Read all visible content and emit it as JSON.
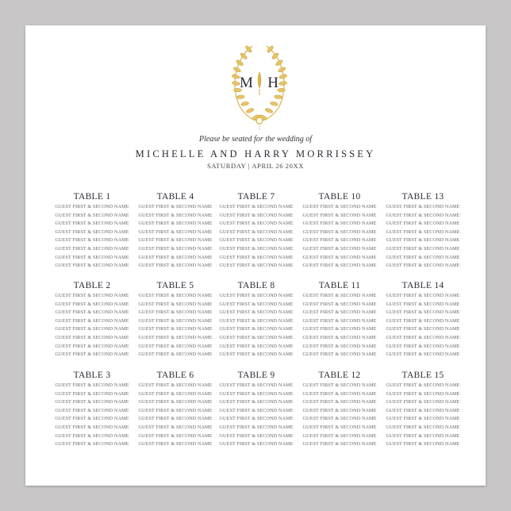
{
  "monogram": {
    "left": "M",
    "right": "H"
  },
  "header": {
    "tagline": "Please be seated for the wedding of",
    "couple": "MICHELLE AND HARRY MORRISSEY",
    "date": "SATURDAY | APRIL 26 20XX"
  },
  "colors": {
    "gold": "#d9b24a",
    "text": "#2b2d36",
    "background": "#c8c6c7"
  },
  "tables": [
    {
      "title": "TABLE 1",
      "guests": [
        "Guest first & second name",
        "Guest first & second name",
        "Guest first & second name",
        "Guest first & second name",
        "Guest first & second name",
        "Guest first & second name",
        "Guest first & second name",
        "Guest first & second name"
      ]
    },
    {
      "title": "TABLE 2",
      "guests": [
        "Guest first & second name",
        "Guest first & second name",
        "Guest first & second name",
        "Guest first & second name",
        "Guest first & second name",
        "Guest first & second name",
        "Guest first & second name",
        "Guest first & second name"
      ]
    },
    {
      "title": "TABLE 3",
      "guests": [
        "Guest first & second name",
        "Guest first & second name",
        "Guest first & second name",
        "Guest first & second name",
        "Guest first & second name",
        "Guest first & second name",
        "Guest first & second name",
        "Guest first & second name"
      ]
    },
    {
      "title": "TABLE 4",
      "guests": [
        "Guest first & second name",
        "Guest first & second name",
        "Guest first & second name",
        "Guest first & second name",
        "Guest first & second name",
        "Guest first & second name",
        "Guest first & second name",
        "Guest first & second name"
      ]
    },
    {
      "title": "TABLE 5",
      "guests": [
        "Guest first & second name",
        "Guest first & second name",
        "Guest first & second name",
        "Guest first & second name",
        "Guest first & second name",
        "Guest first & second name",
        "Guest first & second name",
        "Guest first & second name"
      ]
    },
    {
      "title": "TABLE 6",
      "guests": [
        "Guest first & second name",
        "Guest first & second name",
        "Guest first & second name",
        "Guest first & second name",
        "Guest first & second name",
        "Guest first & second name",
        "Guest first & second name",
        "Guest first & second name"
      ]
    },
    {
      "title": "TABLE 7",
      "guests": [
        "Guest first & second name",
        "Guest first & second name",
        "Guest first & second name",
        "Guest first & second name",
        "Guest first & second name",
        "Guest first & second name",
        "Guest first & second name",
        "Guest first & second name"
      ]
    },
    {
      "title": "TABLE 8",
      "guests": [
        "Guest first & second name",
        "Guest first & second name",
        "Guest first & second name",
        "Guest first & second name",
        "Guest first & second name",
        "Guest first & second name",
        "Guest first & second name",
        "Guest first & second name"
      ]
    },
    {
      "title": "TABLE 9",
      "guests": [
        "Guest first & second name",
        "Guest first & second name",
        "Guest first & second name",
        "Guest first & second name",
        "Guest first & second name",
        "Guest first & second name",
        "Guest first & second name",
        "Guest first & second name"
      ]
    },
    {
      "title": "TABLE 10",
      "guests": [
        "Guest first & second name",
        "Guest first & second name",
        "Guest first & second name",
        "Guest first & second name",
        "Guest first & second name",
        "Guest first & second name",
        "Guest first & second name",
        "Guest first & second name"
      ]
    },
    {
      "title": "TABLE 11",
      "guests": [
        "Guest first & second name",
        "Guest first & second name",
        "Guest first & second name",
        "Guest first & second name",
        "Guest first & second name",
        "Guest first & second name",
        "Guest first & second name",
        "Guest first & second name"
      ]
    },
    {
      "title": "TABLE 12",
      "guests": [
        "Guest first & second name",
        "Guest first & second name",
        "Guest first & second name",
        "Guest first & second name",
        "Guest first & second name",
        "Guest first & second name",
        "Guest first & second name",
        "Guest first & second name"
      ]
    },
    {
      "title": "TABLE 13",
      "guests": [
        "Guest first & second name",
        "Guest first & second name",
        "Guest first & second name",
        "Guest first & second name",
        "Guest first & second name",
        "Guest first & second name",
        "Guest first & second name",
        "Guest first & second name"
      ]
    },
    {
      "title": "TABLE 14",
      "guests": [
        "Guest first & second name",
        "Guest first & second name",
        "Guest first & second name",
        "Guest first & second name",
        "Guest first & second name",
        "Guest first & second name",
        "Guest first & second name",
        "Guest first & second name"
      ]
    },
    {
      "title": "TABLE 15",
      "guests": [
        "Guest first & second name",
        "Guest first & second name",
        "Guest first & second name",
        "Guest first & second name",
        "Guest first & second name",
        "Guest first & second name",
        "Guest first & second name",
        "Guest first & second name"
      ]
    }
  ]
}
